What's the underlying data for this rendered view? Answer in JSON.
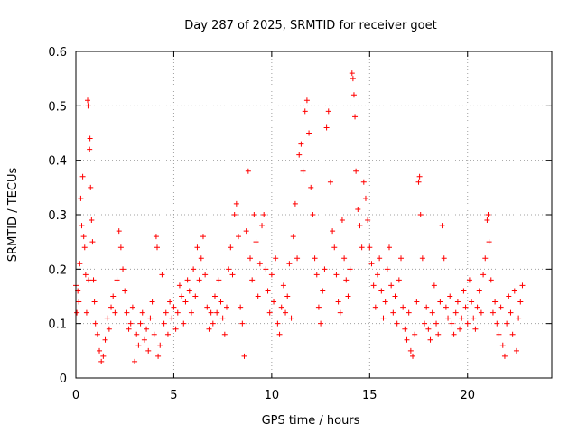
{
  "chart_data": {
    "type": "scatter",
    "title": "Day 287 of 2025, SRMTID for receiver goet",
    "xlabel": "GPS time / hours",
    "ylabel": "SRMTID / TECUs",
    "xlim": [
      0,
      24.3
    ],
    "ylim": [
      0,
      0.6
    ],
    "xticks": [
      0,
      5,
      10,
      15,
      20
    ],
    "xtick_labels": [
      "0",
      "5",
      "10",
      "15",
      "20"
    ],
    "yticks": [
      0,
      0.1,
      0.2,
      0.3,
      0.4,
      0.5,
      0.6
    ],
    "ytick_labels": [
      "0",
      "0.1",
      "0.2",
      "0.3",
      "0.4",
      "0.5",
      "0.6"
    ],
    "grid": true,
    "marker": "+",
    "color": "#ff0000",
    "series": [
      {
        "name": "SRMTID",
        "points": [
          [
            0.0,
            0.17
          ],
          [
            0.05,
            0.12
          ],
          [
            0.1,
            0.16
          ],
          [
            0.15,
            0.14
          ],
          [
            0.2,
            0.21
          ],
          [
            0.25,
            0.33
          ],
          [
            0.3,
            0.28
          ],
          [
            0.35,
            0.37
          ],
          [
            0.4,
            0.26
          ],
          [
            0.45,
            0.24
          ],
          [
            0.5,
            0.19
          ],
          [
            0.55,
            0.12
          ],
          [
            0.6,
            0.51
          ],
          [
            0.62,
            0.5
          ],
          [
            0.65,
            0.18
          ],
          [
            0.7,
            0.42
          ],
          [
            0.72,
            0.44
          ],
          [
            0.75,
            0.35
          ],
          [
            0.8,
            0.29
          ],
          [
            0.85,
            0.25
          ],
          [
            0.9,
            0.18
          ],
          [
            0.95,
            0.14
          ],
          [
            1.0,
            0.1
          ],
          [
            1.1,
            0.08
          ],
          [
            1.2,
            0.05
          ],
          [
            1.3,
            0.03
          ],
          [
            1.4,
            0.04
          ],
          [
            1.5,
            0.07
          ],
          [
            1.6,
            0.11
          ],
          [
            1.7,
            0.09
          ],
          [
            1.8,
            0.13
          ],
          [
            1.9,
            0.15
          ],
          [
            2.0,
            0.12
          ],
          [
            2.1,
            0.18
          ],
          [
            2.2,
            0.27
          ],
          [
            2.3,
            0.24
          ],
          [
            2.4,
            0.2
          ],
          [
            2.5,
            0.16
          ],
          [
            2.6,
            0.12
          ],
          [
            2.7,
            0.09
          ],
          [
            2.8,
            0.1
          ],
          [
            2.9,
            0.13
          ],
          [
            3.0,
            0.03
          ],
          [
            3.1,
            0.08
          ],
          [
            3.2,
            0.06
          ],
          [
            3.3,
            0.1
          ],
          [
            3.4,
            0.12
          ],
          [
            3.5,
            0.07
          ],
          [
            3.6,
            0.09
          ],
          [
            3.7,
            0.05
          ],
          [
            3.8,
            0.11
          ],
          [
            3.9,
            0.14
          ],
          [
            4.0,
            0.08
          ],
          [
            4.1,
            0.26
          ],
          [
            4.15,
            0.24
          ],
          [
            4.2,
            0.04
          ],
          [
            4.3,
            0.06
          ],
          [
            4.4,
            0.19
          ],
          [
            4.5,
            0.1
          ],
          [
            4.6,
            0.12
          ],
          [
            4.7,
            0.08
          ],
          [
            4.8,
            0.14
          ],
          [
            4.9,
            0.11
          ],
          [
            5.0,
            0.13
          ],
          [
            5.1,
            0.09
          ],
          [
            5.2,
            0.12
          ],
          [
            5.3,
            0.17
          ],
          [
            5.4,
            0.15
          ],
          [
            5.5,
            0.1
          ],
          [
            5.6,
            0.14
          ],
          [
            5.7,
            0.18
          ],
          [
            5.8,
            0.16
          ],
          [
            5.9,
            0.12
          ],
          [
            6.0,
            0.2
          ],
          [
            6.1,
            0.15
          ],
          [
            6.2,
            0.24
          ],
          [
            6.3,
            0.18
          ],
          [
            6.4,
            0.22
          ],
          [
            6.5,
            0.26
          ],
          [
            6.6,
            0.19
          ],
          [
            6.7,
            0.13
          ],
          [
            6.8,
            0.09
          ],
          [
            6.9,
            0.12
          ],
          [
            7.0,
            0.1
          ],
          [
            7.1,
            0.15
          ],
          [
            7.2,
            0.12
          ],
          [
            7.3,
            0.18
          ],
          [
            7.4,
            0.14
          ],
          [
            7.5,
            0.11
          ],
          [
            7.6,
            0.08
          ],
          [
            7.7,
            0.13
          ],
          [
            7.8,
            0.2
          ],
          [
            7.9,
            0.24
          ],
          [
            8.0,
            0.19
          ],
          [
            8.1,
            0.3
          ],
          [
            8.2,
            0.32
          ],
          [
            8.3,
            0.26
          ],
          [
            8.4,
            0.13
          ],
          [
            8.5,
            0.1
          ],
          [
            8.6,
            0.04
          ],
          [
            8.7,
            0.27
          ],
          [
            8.8,
            0.38
          ],
          [
            8.9,
            0.22
          ],
          [
            9.0,
            0.18
          ],
          [
            9.1,
            0.3
          ],
          [
            9.2,
            0.25
          ],
          [
            9.3,
            0.15
          ],
          [
            9.4,
            0.21
          ],
          [
            9.5,
            0.28
          ],
          [
            9.6,
            0.3
          ],
          [
            9.7,
            0.2
          ],
          [
            9.8,
            0.16
          ],
          [
            9.9,
            0.12
          ],
          [
            10.0,
            0.19
          ],
          [
            10.1,
            0.14
          ],
          [
            10.2,
            0.22
          ],
          [
            10.3,
            0.1
          ],
          [
            10.4,
            0.08
          ],
          [
            10.5,
            0.13
          ],
          [
            10.6,
            0.17
          ],
          [
            10.7,
            0.12
          ],
          [
            10.8,
            0.15
          ],
          [
            10.9,
            0.21
          ],
          [
            11.0,
            0.11
          ],
          [
            11.1,
            0.26
          ],
          [
            11.2,
            0.32
          ],
          [
            11.3,
            0.22
          ],
          [
            11.4,
            0.41
          ],
          [
            11.5,
            0.43
          ],
          [
            11.6,
            0.38
          ],
          [
            11.7,
            0.49
          ],
          [
            11.8,
            0.51
          ],
          [
            11.9,
            0.45
          ],
          [
            12.0,
            0.35
          ],
          [
            12.1,
            0.3
          ],
          [
            12.2,
            0.22
          ],
          [
            12.3,
            0.19
          ],
          [
            12.4,
            0.13
          ],
          [
            12.5,
            0.1
          ],
          [
            12.6,
            0.16
          ],
          [
            12.7,
            0.2
          ],
          [
            12.8,
            0.46
          ],
          [
            12.9,
            0.49
          ],
          [
            13.0,
            0.36
          ],
          [
            13.1,
            0.27
          ],
          [
            13.2,
            0.24
          ],
          [
            13.3,
            0.19
          ],
          [
            13.4,
            0.14
          ],
          [
            13.5,
            0.12
          ],
          [
            13.6,
            0.29
          ],
          [
            13.7,
            0.22
          ],
          [
            13.8,
            0.18
          ],
          [
            13.9,
            0.15
          ],
          [
            14.0,
            0.2
          ],
          [
            14.1,
            0.56
          ],
          [
            14.15,
            0.55
          ],
          [
            14.2,
            0.52
          ],
          [
            14.25,
            0.48
          ],
          [
            14.3,
            0.38
          ],
          [
            14.4,
            0.31
          ],
          [
            14.5,
            0.28
          ],
          [
            14.6,
            0.24
          ],
          [
            14.7,
            0.36
          ],
          [
            14.8,
            0.33
          ],
          [
            14.9,
            0.29
          ],
          [
            15.0,
            0.24
          ],
          [
            15.1,
            0.21
          ],
          [
            15.2,
            0.17
          ],
          [
            15.3,
            0.13
          ],
          [
            15.4,
            0.19
          ],
          [
            15.5,
            0.22
          ],
          [
            15.6,
            0.16
          ],
          [
            15.7,
            0.11
          ],
          [
            15.8,
            0.14
          ],
          [
            15.9,
            0.2
          ],
          [
            16.0,
            0.24
          ],
          [
            16.1,
            0.17
          ],
          [
            16.2,
            0.12
          ],
          [
            16.3,
            0.15
          ],
          [
            16.4,
            0.1
          ],
          [
            16.5,
            0.18
          ],
          [
            16.6,
            0.22
          ],
          [
            16.7,
            0.13
          ],
          [
            16.8,
            0.09
          ],
          [
            16.9,
            0.07
          ],
          [
            17.0,
            0.12
          ],
          [
            17.1,
            0.05
          ],
          [
            17.2,
            0.04
          ],
          [
            17.3,
            0.08
          ],
          [
            17.4,
            0.14
          ],
          [
            17.5,
            0.36
          ],
          [
            17.55,
            0.37
          ],
          [
            17.6,
            0.3
          ],
          [
            17.7,
            0.22
          ],
          [
            17.8,
            0.1
          ],
          [
            17.9,
            0.13
          ],
          [
            18.0,
            0.09
          ],
          [
            18.1,
            0.07
          ],
          [
            18.2,
            0.12
          ],
          [
            18.3,
            0.17
          ],
          [
            18.4,
            0.1
          ],
          [
            18.5,
            0.08
          ],
          [
            18.6,
            0.14
          ],
          [
            18.7,
            0.28
          ],
          [
            18.8,
            0.22
          ],
          [
            18.9,
            0.13
          ],
          [
            19.0,
            0.11
          ],
          [
            19.1,
            0.15
          ],
          [
            19.2,
            0.1
          ],
          [
            19.3,
            0.08
          ],
          [
            19.4,
            0.12
          ],
          [
            19.5,
            0.14
          ],
          [
            19.6,
            0.09
          ],
          [
            19.7,
            0.11
          ],
          [
            19.8,
            0.16
          ],
          [
            19.9,
            0.13
          ],
          [
            20.0,
            0.1
          ],
          [
            20.1,
            0.18
          ],
          [
            20.2,
            0.14
          ],
          [
            20.3,
            0.11
          ],
          [
            20.4,
            0.09
          ],
          [
            20.5,
            0.13
          ],
          [
            20.6,
            0.16
          ],
          [
            20.7,
            0.12
          ],
          [
            20.8,
            0.19
          ],
          [
            20.9,
            0.22
          ],
          [
            21.0,
            0.29
          ],
          [
            21.05,
            0.3
          ],
          [
            21.1,
            0.25
          ],
          [
            21.2,
            0.18
          ],
          [
            21.3,
            0.12
          ],
          [
            21.4,
            0.14
          ],
          [
            21.5,
            0.1
          ],
          [
            21.6,
            0.08
          ],
          [
            21.7,
            0.13
          ],
          [
            21.8,
            0.06
          ],
          [
            21.9,
            0.04
          ],
          [
            22.0,
            0.1
          ],
          [
            22.1,
            0.15
          ],
          [
            22.2,
            0.12
          ],
          [
            22.3,
            0.08
          ],
          [
            22.4,
            0.16
          ],
          [
            22.5,
            0.05
          ],
          [
            22.6,
            0.11
          ],
          [
            22.7,
            0.14
          ],
          [
            22.8,
            0.17
          ]
        ]
      }
    ]
  }
}
